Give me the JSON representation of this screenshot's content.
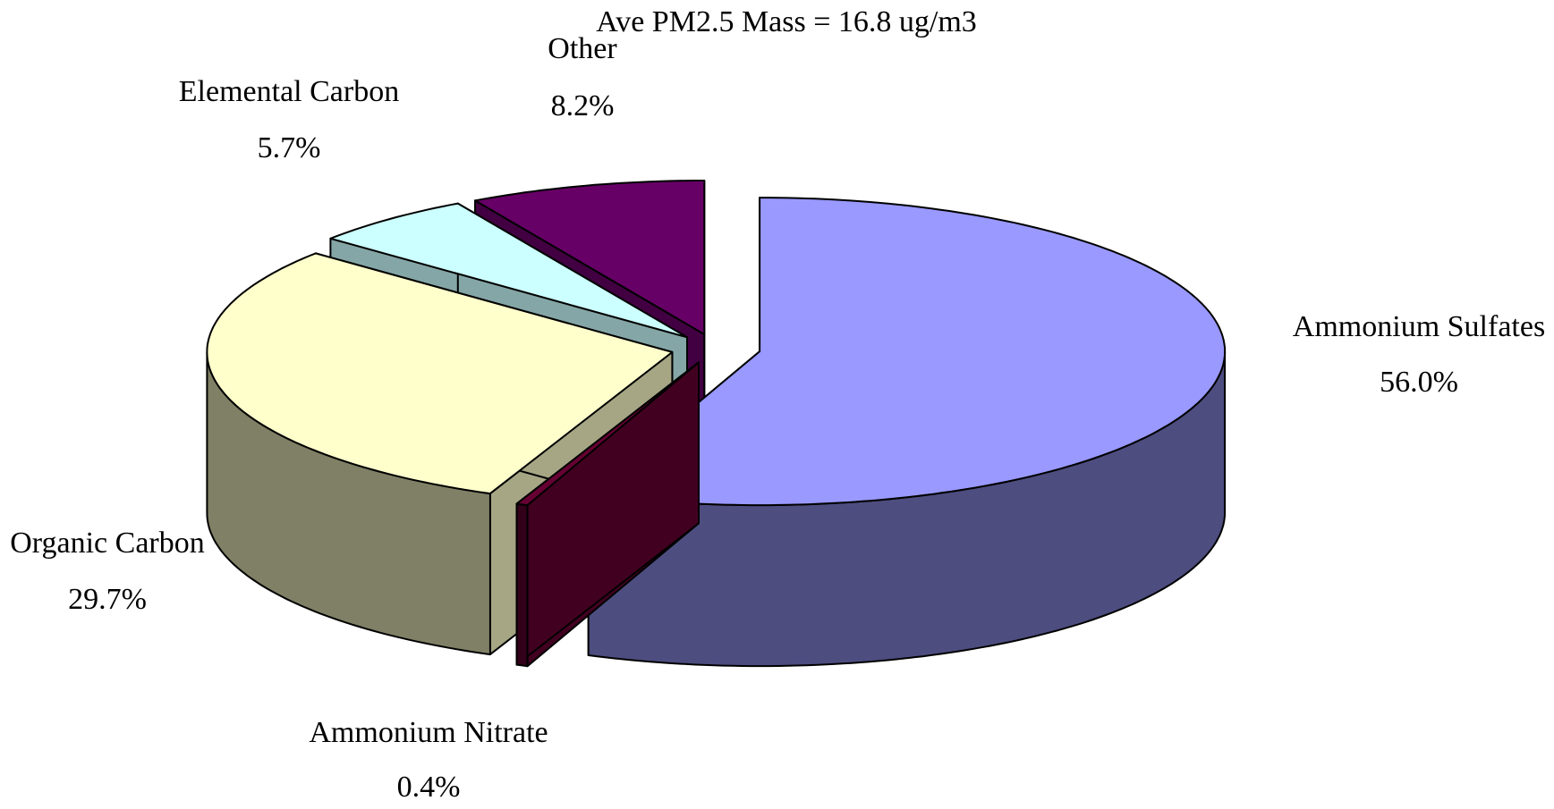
{
  "chart_data": {
    "type": "pie",
    "title": "Ave PM2.5 Mass = 16.8 ug/m3",
    "categories": [
      "Ammonium Sulfates",
      "Ammonium Nitrate",
      "Organic Carbon",
      "Elemental Carbon",
      "Other"
    ],
    "values": [
      56.0,
      0.4,
      29.7,
      5.7,
      8.2
    ],
    "value_labels": [
      "56.0%",
      "0.4%",
      "29.7%",
      "5.7%",
      "8.2%"
    ],
    "colors": [
      "#9999ff",
      "#660033",
      "#ffffcc",
      "#ccffff",
      "#660066"
    ]
  }
}
